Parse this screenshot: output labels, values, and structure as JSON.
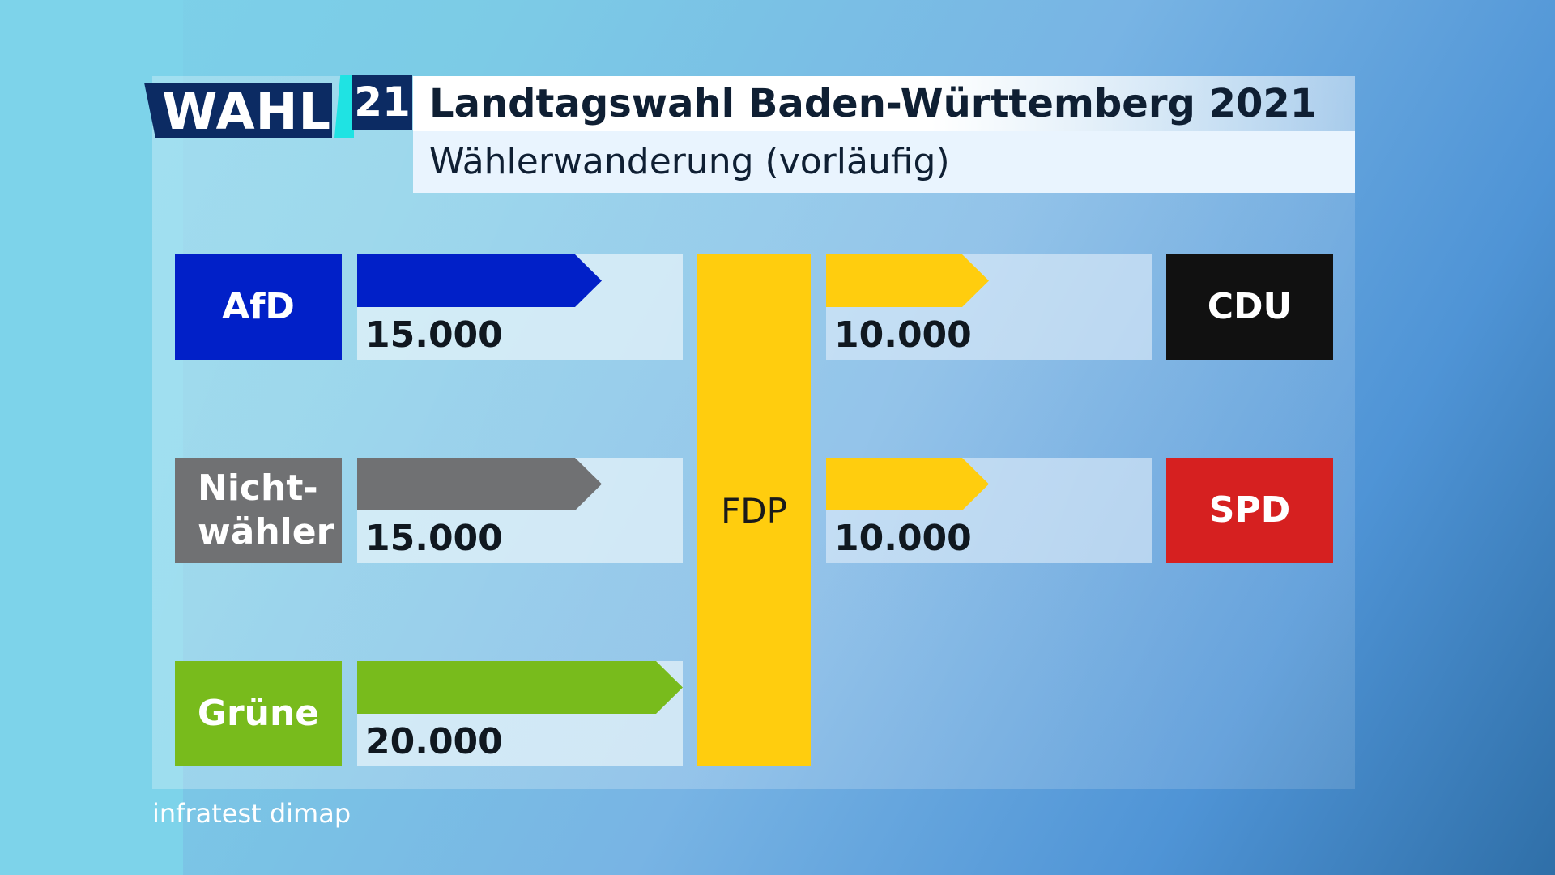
{
  "header": {
    "logo_text": "WAHL",
    "logo_number": "21",
    "title": "Landtagswahl Baden-Württemberg 2021",
    "subtitle": "Wählerwanderung (vorläufig)"
  },
  "center_party": {
    "name": "FDP",
    "color": "#ffcd0e"
  },
  "sources_left": [
    {
      "party": "AfD",
      "color": "#0120c8",
      "value_label": "15.000"
    },
    {
      "party": "Nicht-\nwähler",
      "color": "#707173",
      "value_label": "15.000"
    },
    {
      "party": "Grüne",
      "color": "#78bb1c",
      "value_label": "20.000"
    }
  ],
  "sources_right": [
    {
      "party": "CDU",
      "color": "#111111",
      "value_label": "10.000",
      "arrow_color": "#ffcd0e"
    },
    {
      "party": "SPD",
      "color": "#d62020",
      "value_label": "10.000",
      "arrow_color": "#ffcd0e"
    }
  ],
  "chart_data": {
    "type": "bar",
    "title": "Landtagswahl Baden-Württemberg 2021",
    "subtitle": "Wählerwanderung (vorläufig)",
    "flows": [
      {
        "from": "AfD",
        "to": "FDP",
        "value": 15000
      },
      {
        "from": "Nichtwähler",
        "to": "FDP",
        "value": 15000
      },
      {
        "from": "Grüne",
        "to": "FDP",
        "value": 20000
      },
      {
        "from": "FDP",
        "to": "CDU",
        "value": 10000
      },
      {
        "from": "FDP",
        "to": "SPD",
        "value": 10000
      }
    ],
    "max_value": 20000
  },
  "footer": {
    "source": "infratest dimap"
  }
}
